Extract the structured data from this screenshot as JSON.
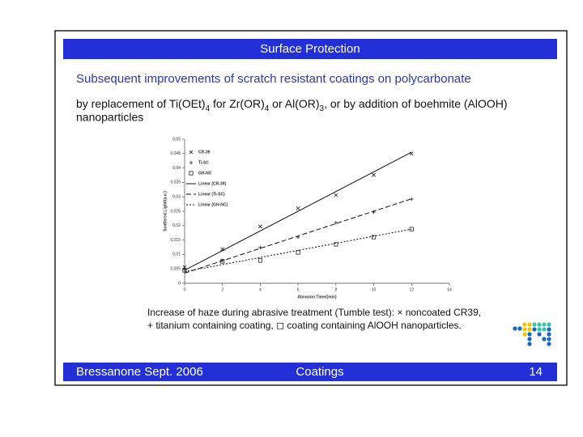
{
  "header": {
    "title": "Surface Protection"
  },
  "subtitle": "Subsequent improvements of scratch resistant coatings on polycarbonate",
  "body": {
    "parts": [
      "by replacement of Ti(OEt)",
      "4",
      " for Zr(OR)",
      "4",
      " or Al(OR)",
      "3",
      ", or by addition of boehmite (AlOOH)"
    ],
    "line2": "nanoparticles"
  },
  "chart_data": {
    "type": "scatter",
    "y_label": "Scattered Light/(a.u.)",
    "x_label": "Abrasion Time/(min)",
    "x": [
      0,
      2,
      4,
      6,
      8,
      10,
      12
    ],
    "series": [
      {
        "name": "CR-39",
        "marker": "x",
        "color": "#222222",
        "values": [
          0.0056,
          0.0118,
          0.0197,
          0.026,
          0.0306,
          0.0376,
          0.045
        ]
      },
      {
        "name": "Ti-SC",
        "marker": "+",
        "color": "#222222",
        "values": [
          0.0048,
          0.0079,
          0.0124,
          0.016,
          0.021,
          0.0247,
          0.0292
        ]
      },
      {
        "name": "GH-NC",
        "marker": "square",
        "color": "#222222",
        "values": [
          0.0045,
          0.0076,
          0.0079,
          0.0107,
          0.0135,
          0.016,
          0.0188
        ]
      }
    ],
    "fits": [
      {
        "name": "Linear (CR-39)",
        "dash": "solid",
        "x": [
          0,
          12
        ],
        "values": [
          0.0045,
          0.0455
        ]
      },
      {
        "name": "Linear (Ti-SC)",
        "dash": "dashed",
        "x": [
          0,
          12
        ],
        "values": [
          0.0035,
          0.0293
        ]
      },
      {
        "name": "Linear (GH-NC)",
        "dash": "dotted",
        "x": [
          0,
          12
        ],
        "values": [
          0.004,
          0.0188
        ]
      }
    ],
    "xlim": [
      0,
      14
    ],
    "xticks": [
      0,
      2,
      4,
      6,
      8,
      10,
      12,
      14
    ],
    "ylim": [
      0,
      0.05
    ],
    "yticks": [
      0,
      {
        "value": 0.005,
        "label": "0,005"
      },
      {
        "value": 0.01,
        "label": "0,01"
      },
      {
        "value": 0.015,
        "label": "0,015"
      },
      {
        "value": 0.02,
        "label": "0,02"
      },
      {
        "value": 0.025,
        "label": "0,025"
      },
      {
        "value": 0.03,
        "label": "0,03"
      },
      {
        "value": 0.035,
        "label": "0,035"
      },
      {
        "value": 0.04,
        "label": "0,04"
      },
      {
        "value": 0.045,
        "label": "0,045"
      },
      {
        "value": 0.05,
        "label": "0,05"
      }
    ],
    "legend": "upper left"
  },
  "caption": {
    "line1": "Increase of haze during abrasive treatment (Tumble test): × noncoated CR39,",
    "line2": "+ titanium containing coating, ◻ coating containing AlOOH nanoparticles."
  },
  "footer": {
    "left": "Bressanone Sept. 2006",
    "center": "Coatings",
    "right": "14"
  }
}
